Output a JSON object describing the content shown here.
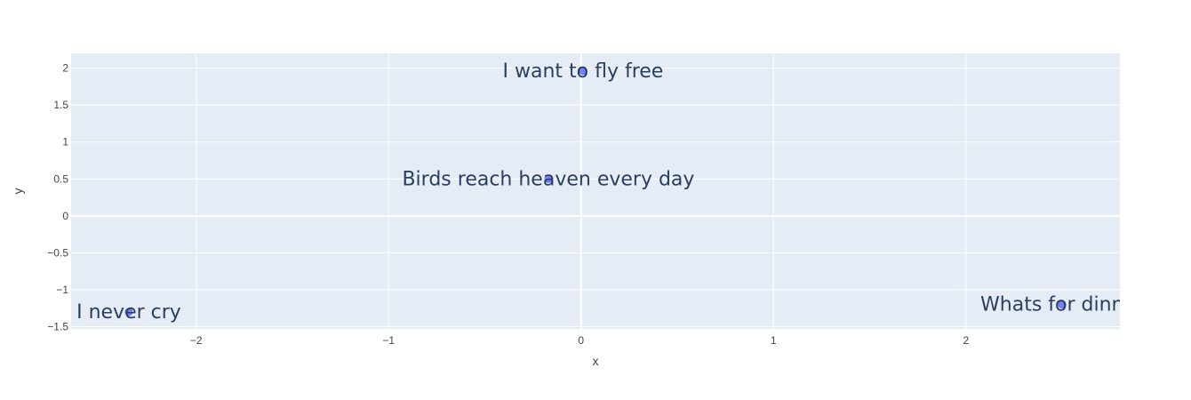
{
  "chart_data": {
    "type": "scatter",
    "xlabel": "x",
    "ylabel": "y",
    "xlim": [
      -2.65,
      2.8
    ],
    "ylim": [
      -1.53,
      2.2
    ],
    "x_ticks": [
      -2,
      -1,
      0,
      1,
      2
    ],
    "y_ticks": [
      -1.5,
      -1,
      -0.5,
      0,
      0.5,
      1,
      1.5,
      2
    ],
    "x_tick_labels": [
      "−2",
      "−1",
      "0",
      "1",
      "2"
    ],
    "y_tick_labels": [
      "−1.5",
      "−1",
      "−0.5",
      "0",
      "0.5",
      "1",
      "1.5",
      "2"
    ],
    "grid": true,
    "series": [
      {
        "points": [
          {
            "x": 0.01,
            "y": 1.96,
            "label": "I want to fly free"
          },
          {
            "x": -0.17,
            "y": 0.5,
            "label": "Birds reach heaven every day"
          },
          {
            "x": -2.35,
            "y": -1.3,
            "label": "I never cry"
          },
          {
            "x": 2.5,
            "y": -1.2,
            "label": "Whats for dinner"
          }
        ]
      }
    ],
    "colors": {
      "plot_bg": "#e5ecf6",
      "grid": "#ffffff",
      "marker": "#636efa",
      "text": "#2a3f5f"
    }
  }
}
